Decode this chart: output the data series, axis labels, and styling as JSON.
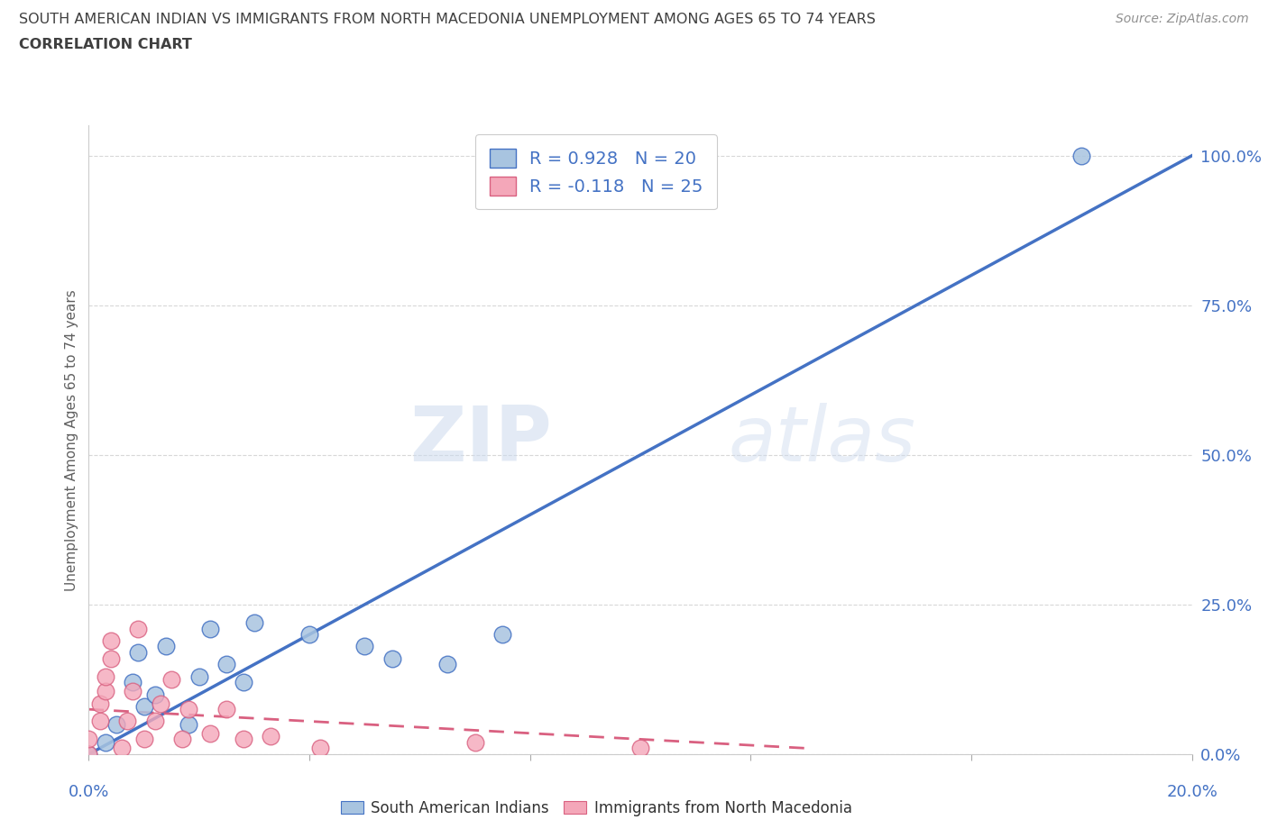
{
  "title_line1": "SOUTH AMERICAN INDIAN VS IMMIGRANTS FROM NORTH MACEDONIA UNEMPLOYMENT AMONG AGES 65 TO 74 YEARS",
  "title_line2": "CORRELATION CHART",
  "source_text": "Source: ZipAtlas.com",
  "ylabel": "Unemployment Among Ages 65 to 74 years",
  "xlim": [
    0.0,
    0.2
  ],
  "ylim": [
    0.0,
    1.05
  ],
  "y_tick_labels": [
    "0.0%",
    "25.0%",
    "50.0%",
    "75.0%",
    "100.0%"
  ],
  "y_tick_positions": [
    0.0,
    0.25,
    0.5,
    0.75,
    1.0
  ],
  "x_tick_positions": [
    0.0,
    0.04,
    0.08,
    0.12,
    0.16,
    0.2
  ],
  "watermark_zip": "ZIP",
  "watermark_atlas": "atlas",
  "legend_r1": "R = 0.928",
  "legend_n1": "N = 20",
  "legend_r2": "R = -0.118",
  "legend_n2": "N = 25",
  "blue_color": "#a8c4e0",
  "blue_line_color": "#4472c4",
  "pink_color": "#f4a7b9",
  "pink_line_color": "#d96080",
  "title_color": "#404040",
  "source_color": "#909090",
  "axis_label_color": "#606060",
  "tick_label_color": "#4472c4",
  "legend_text_color": "#4472c4",
  "blue_scatter": [
    [
      0.0,
      0.0
    ],
    [
      0.003,
      0.02
    ],
    [
      0.005,
      0.05
    ],
    [
      0.01,
      0.08
    ],
    [
      0.008,
      0.12
    ],
    [
      0.009,
      0.17
    ],
    [
      0.012,
      0.1
    ],
    [
      0.014,
      0.18
    ],
    [
      0.018,
      0.05
    ],
    [
      0.02,
      0.13
    ],
    [
      0.022,
      0.21
    ],
    [
      0.025,
      0.15
    ],
    [
      0.028,
      0.12
    ],
    [
      0.03,
      0.22
    ],
    [
      0.04,
      0.2
    ],
    [
      0.05,
      0.18
    ],
    [
      0.055,
      0.16
    ],
    [
      0.065,
      0.15
    ],
    [
      0.075,
      0.2
    ],
    [
      0.18,
      1.0
    ]
  ],
  "pink_scatter": [
    [
      0.0,
      0.0
    ],
    [
      0.0,
      0.025
    ],
    [
      0.002,
      0.055
    ],
    [
      0.002,
      0.085
    ],
    [
      0.003,
      0.105
    ],
    [
      0.003,
      0.13
    ],
    [
      0.004,
      0.16
    ],
    [
      0.004,
      0.19
    ],
    [
      0.006,
      0.01
    ],
    [
      0.007,
      0.055
    ],
    [
      0.008,
      0.105
    ],
    [
      0.009,
      0.21
    ],
    [
      0.01,
      0.025
    ],
    [
      0.012,
      0.055
    ],
    [
      0.013,
      0.085
    ],
    [
      0.015,
      0.125
    ],
    [
      0.017,
      0.025
    ],
    [
      0.018,
      0.075
    ],
    [
      0.022,
      0.035
    ],
    [
      0.025,
      0.075
    ],
    [
      0.028,
      0.025
    ],
    [
      0.033,
      0.03
    ],
    [
      0.042,
      0.01
    ],
    [
      0.07,
      0.02
    ],
    [
      0.1,
      0.01
    ]
  ],
  "blue_trendline_x": [
    0.0,
    0.2
  ],
  "blue_trendline_y": [
    0.0,
    1.0
  ],
  "pink_trendline_x": [
    0.0,
    0.13
  ],
  "pink_trendline_y": [
    0.075,
    0.01
  ],
  "grid_color": "#d8d8d8",
  "background_color": "#ffffff"
}
